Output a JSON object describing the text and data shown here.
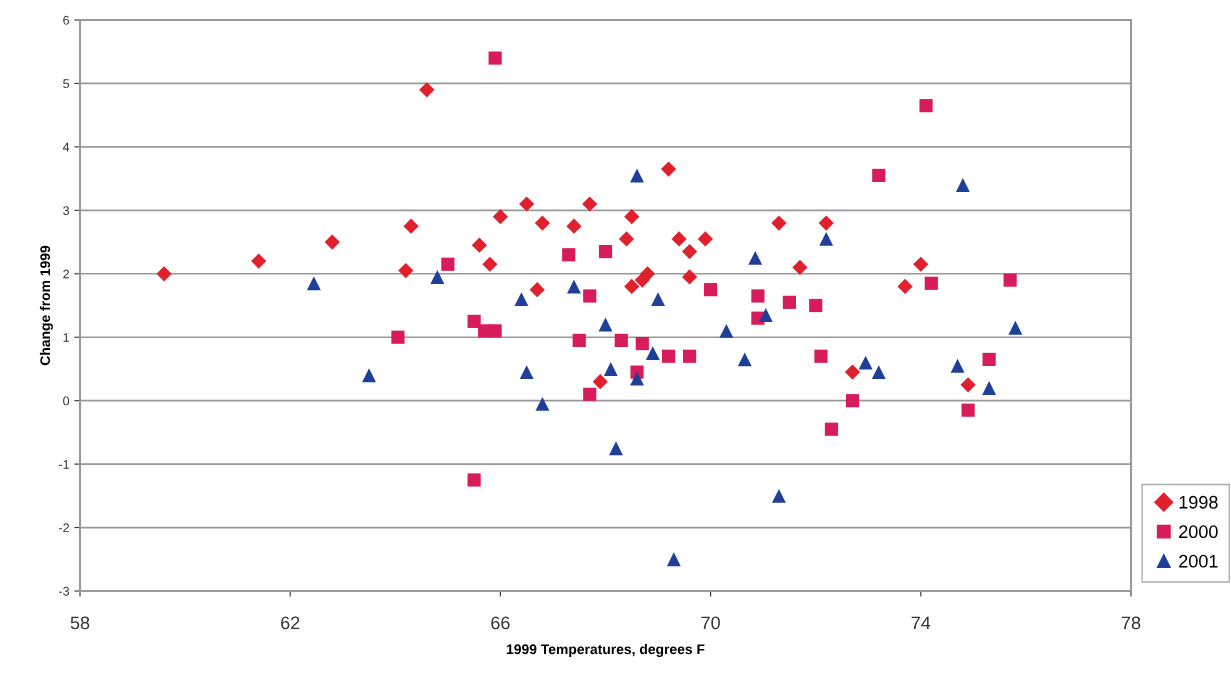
{
  "chart_data": {
    "type": "scatter",
    "xlabel": "1999 Temperatures, degrees F",
    "ylabel": "Change from 1999",
    "xlim": [
      58,
      78
    ],
    "xticks": [
      58,
      62,
      66,
      70,
      74,
      78
    ],
    "ylim": [
      -3,
      6
    ],
    "yticks": [
      -3,
      -2,
      -1,
      0,
      1,
      2,
      3,
      4,
      5,
      6
    ],
    "grid": "y",
    "legend": "bottom right",
    "series": [
      {
        "name": "1998",
        "color": "#e0202c",
        "marker": "diamond",
        "x": [
          59.6,
          61.4,
          62.8,
          64.3,
          64.2,
          64.6,
          65.6,
          66.0,
          65.8,
          66.5,
          66.8,
          66.7,
          67.4,
          67.7,
          67.9,
          68.4,
          68.5,
          68.5,
          68.7,
          68.8,
          69.2,
          69.4,
          69.6,
          69.9,
          69.6,
          71.3,
          71.7,
          72.2,
          72.7,
          73.7,
          74.0,
          74.9
        ],
        "values": [
          2.0,
          2.2,
          2.5,
          2.75,
          2.05,
          4.9,
          2.45,
          2.9,
          2.15,
          3.1,
          2.8,
          1.75,
          2.75,
          3.1,
          0.3,
          2.55,
          2.9,
          1.8,
          1.9,
          2.0,
          3.65,
          2.55,
          2.35,
          2.55,
          1.95,
          2.8,
          2.1,
          2.8,
          0.45,
          1.8,
          2.15,
          0.25
        ]
      },
      {
        "name": "2000",
        "color": "#d81b5a",
        "marker": "square",
        "x": [
          64.05,
          65.0,
          65.9,
          65.5,
          65.7,
          65.9,
          65.5,
          67.3,
          68.0,
          67.7,
          67.5,
          67.7,
          68.3,
          68.7,
          68.6,
          69.2,
          69.6,
          70.0,
          70.9,
          70.9,
          71.5,
          72.0,
          72.1,
          72.3,
          72.7,
          73.2,
          74.1,
          74.2,
          74.9,
          75.3,
          75.7
        ],
        "values": [
          1.0,
          2.15,
          5.4,
          1.25,
          1.1,
          1.1,
          -1.25,
          2.3,
          2.35,
          1.65,
          0.95,
          0.1,
          0.95,
          0.9,
          0.45,
          0.7,
          0.7,
          1.75,
          1.65,
          1.3,
          1.55,
          1.5,
          0.7,
          -0.45,
          0.0,
          3.55,
          4.65,
          1.85,
          -0.15,
          0.65,
          1.9
        ]
      },
      {
        "name": "2001",
        "color": "#1f3f99",
        "marker": "triangle",
        "x": [
          62.45,
          63.5,
          64.8,
          66.4,
          66.5,
          66.8,
          67.4,
          68.0,
          68.1,
          68.2,
          68.6,
          68.6,
          68.9,
          69.0,
          69.3,
          70.3,
          70.65,
          70.85,
          71.05,
          71.3,
          72.2,
          72.95,
          73.2,
          74.8,
          74.7,
          75.3,
          75.8
        ],
        "values": [
          1.85,
          0.4,
          1.95,
          1.6,
          0.45,
          -0.05,
          1.8,
          1.2,
          0.5,
          -0.75,
          3.55,
          0.35,
          0.75,
          1.6,
          -2.5,
          1.1,
          0.65,
          2.25,
          1.35,
          -1.5,
          2.55,
          0.6,
          0.45,
          3.4,
          0.55,
          0.2,
          1.15
        ]
      }
    ]
  }
}
